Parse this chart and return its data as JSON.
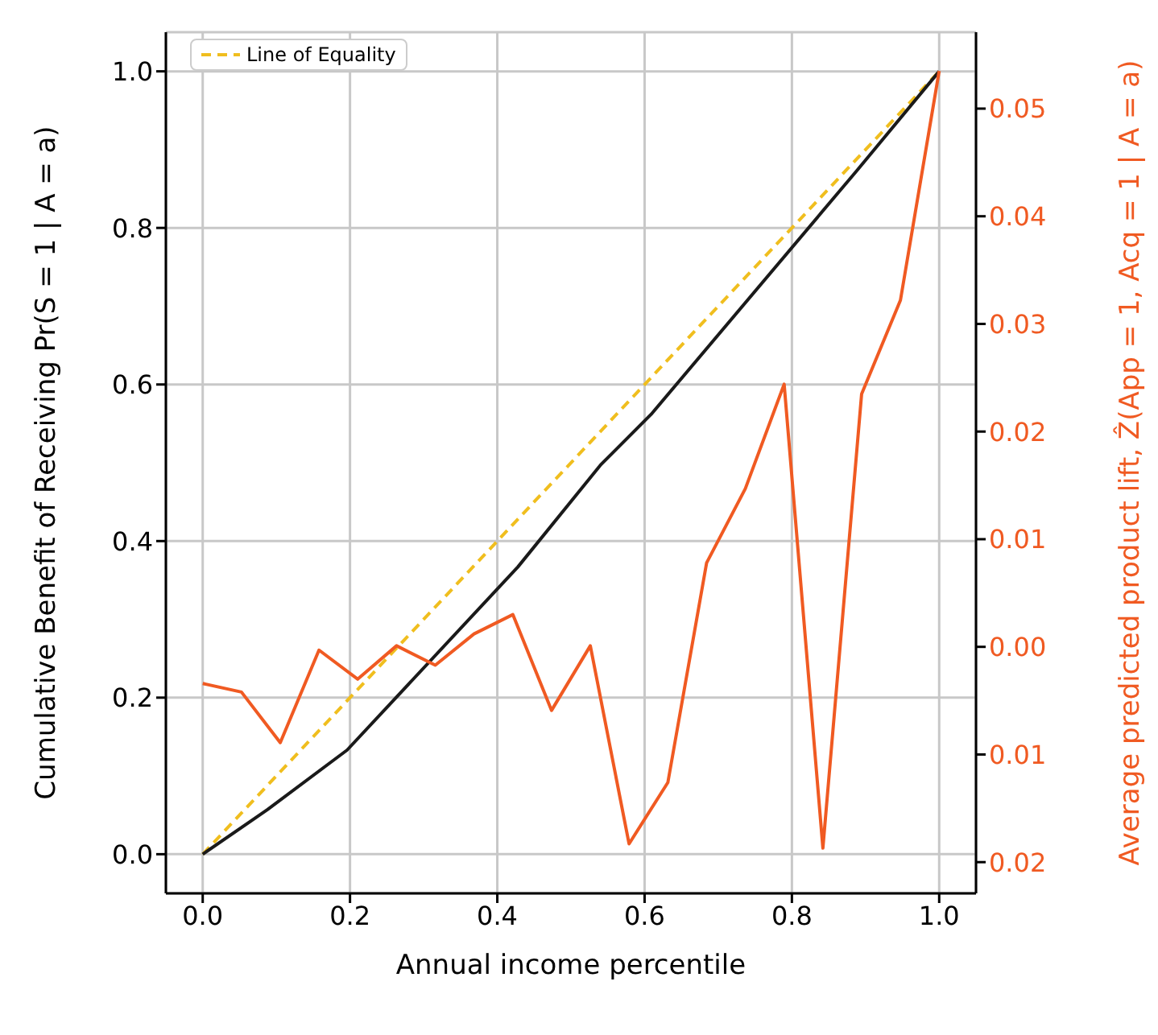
{
  "chart_data": {
    "type": "line",
    "xlabel": "Annual income percentile",
    "ylabel": "Cumulative Benefit of Receiving Pr(S = 1 | A = a)",
    "y2label": "Average predicted product lift, Ẑ(App = 1, Acq = 1 | A = a)",
    "xlim": [
      -0.05,
      1.05
    ],
    "xticks": [
      {
        "value": 0,
        "label": "0.0"
      },
      0.2,
      0.4,
      0.6,
      0.8,
      {
        "value": 1,
        "label": "1.0"
      }
    ],
    "ylim": [
      -0.05,
      1.05
    ],
    "yticks": [
      {
        "value": 0,
        "label": "0.0"
      },
      0.2,
      0.4,
      0.6,
      0.8,
      {
        "value": 1,
        "label": "1.0"
      }
    ],
    "y2lim": [
      -0.0229,
      0.0571
    ],
    "y2ticks": [
      {
        "value": -0.02,
        "label": "0.02"
      },
      {
        "value": -0.01,
        "label": "0.01"
      },
      {
        "value": 0,
        "label": "0.00"
      },
      0.01,
      0.02,
      0.03,
      0.04,
      0.05
    ],
    "grid": true,
    "legend": "top left",
    "marker": "none",
    "series": [
      {
        "name": "Line of Equality",
        "color": "#f0be1e",
        "line_style": "dashed",
        "x": [
          0,
          1
        ],
        "values": [
          0,
          1
        ]
      },
      {
        "color": "#1a1a1a",
        "line_style": "solid",
        "x": [
          0,
          0.088,
          0.196,
          0.428,
          0.54,
          0.609,
          0.888,
          1
        ],
        "values": [
          0,
          0.057,
          0.133,
          0.367,
          0.497,
          0.562,
          0.873,
          1
        ]
      },
      {
        "color": "#f05a22",
        "line_style": "solid",
        "axis": "y2",
        "x": [
          0,
          0.0526,
          0.1053,
          0.1579,
          0.2105,
          0.2632,
          0.3158,
          0.3684,
          0.4211,
          0.4737,
          0.5263,
          0.5789,
          0.6316,
          0.6842,
          0.7368,
          0.7895,
          0.8421,
          0.8947,
          0.9474,
          1
        ],
        "values": [
          -0.0034,
          -0.0042,
          -0.0089,
          -0.0003,
          -0.003,
          0.0001,
          -0.0017,
          0.0012,
          0.003,
          -0.0059,
          0.0001,
          -0.0183,
          -0.0126,
          0.0078,
          0.0147,
          0.0244,
          -0.0187,
          0.0235,
          0.0322,
          0.0535
        ]
      }
    ]
  }
}
